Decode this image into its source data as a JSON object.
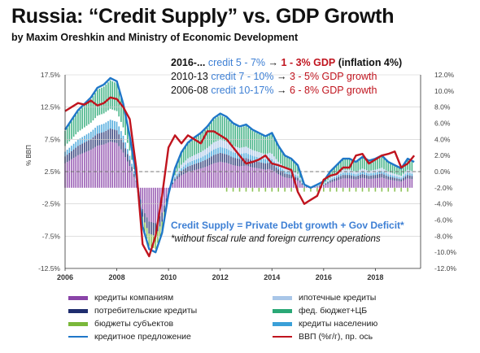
{
  "title": "Russia: “Credit Supply” vs. GDP Growth",
  "subtitle": "by Maxim Oreshkin and Ministry of Economic Development",
  "notes": [
    {
      "period": "2016-...",
      "credit": "credit 5 - 7%",
      "arrow": "→",
      "gdp": "1 - 3% GDP",
      "extra": "(inflation 4%)"
    },
    {
      "period": "2010-13",
      "credit": "credit 7 - 10%",
      "arrow": "→",
      "gdp": "3 - 5% GDP growth"
    },
    {
      "period": "2006-08",
      "credit": "credit 10-17%",
      "arrow": "→",
      "gdp": "6 - 8% GDP growth"
    }
  ],
  "annotation": {
    "line1": "Credit Supply = Private Debt growth + Gov Deficit*",
    "line2": "*without fiscal rule and foreign currency operations"
  },
  "legend": [
    {
      "label": "кредиты компаниям",
      "color": "#8a44a8",
      "kind": "bar"
    },
    {
      "label": "ипотечные кредиты",
      "color": "#a9c6e8",
      "kind": "bar"
    },
    {
      "label": "потребительские кредиты",
      "color": "#1f2d6e",
      "kind": "bar"
    },
    {
      "label": "фед. бюджет+ЦБ",
      "color": "#2aa876",
      "kind": "bar"
    },
    {
      "label": "бюджеты субъектов",
      "color": "#7ab83a",
      "kind": "bar"
    },
    {
      "label": "кредиты населению",
      "color": "#3aa0d8",
      "kind": "bar"
    },
    {
      "label": "кредитное предложение",
      "color": "#1f77c8",
      "kind": "line"
    },
    {
      "label": "ВВП (%г/г), пр. ось",
      "color": "#c0141e",
      "kind": "line"
    }
  ],
  "chart_data": {
    "type": "bar",
    "x_ticks": [
      "2006",
      "2008",
      "2010",
      "2012",
      "2014",
      "2016",
      "2018"
    ],
    "ylabel": "% ВВП",
    "ylim": [
      -12.5,
      17.5
    ],
    "y_ticks": [
      "17.5%",
      "12.5%",
      "7.5%",
      "2.5%",
      "-2.5%",
      "-7.5%",
      "-12.5%"
    ],
    "y2lim": [
      -12.0,
      12.0
    ],
    "y2_ticks": [
      "12.0%",
      "10.0%",
      "8.0%",
      "6.0%",
      "4.0%",
      "2.0%",
      "0.0%",
      "-2.0%",
      "-4.0%",
      "-6.0%",
      "-8.0%",
      "-10.0%",
      "-12.0%"
    ],
    "series": [
      {
        "name": "кредитное предложение",
        "axis": "left",
        "color": "#1f77c8",
        "x": [
          2006.0,
          2006.25,
          2006.5,
          2006.75,
          2007.0,
          2007.25,
          2007.5,
          2007.75,
          2008.0,
          2008.25,
          2008.5,
          2008.75,
          2009.0,
          2009.25,
          2009.5,
          2009.75,
          2010.0,
          2010.25,
          2010.5,
          2010.75,
          2011.0,
          2011.25,
          2011.5,
          2011.75,
          2012.0,
          2012.25,
          2012.5,
          2012.75,
          2013.0,
          2013.25,
          2013.5,
          2013.75,
          2014.0,
          2014.25,
          2014.5,
          2014.75,
          2015.0,
          2015.25,
          2015.5,
          2015.75,
          2016.0,
          2016.25,
          2016.5,
          2016.75,
          2017.0,
          2017.25,
          2017.5,
          2017.75,
          2018.0,
          2018.25,
          2018.5,
          2018.75,
          2019.0,
          2019.25,
          2019.5
        ],
        "values": [
          9.0,
          10.5,
          12.0,
          13.0,
          14.0,
          15.5,
          16.0,
          17.0,
          16.5,
          13.0,
          8.0,
          2.0,
          -6.0,
          -9.5,
          -10.0,
          -7.0,
          -1.0,
          3.0,
          5.5,
          7.0,
          7.8,
          8.5,
          9.5,
          10.8,
          11.5,
          11.0,
          10.0,
          9.5,
          9.8,
          9.0,
          8.5,
          8.0,
          8.5,
          6.5,
          5.0,
          4.5,
          3.5,
          0.5,
          0.0,
          0.5,
          1.0,
          2.5,
          3.5,
          4.5,
          4.5,
          4.0,
          4.8,
          4.2,
          4.5,
          5.0,
          4.0,
          3.5,
          3.0,
          4.5,
          4.0
        ]
      },
      {
        "name": "ВВП (%г/г), пр. ось",
        "axis": "right",
        "color": "#c0141e",
        "x": [
          2006.0,
          2006.25,
          2006.5,
          2006.75,
          2007.0,
          2007.25,
          2007.5,
          2007.75,
          2008.0,
          2008.25,
          2008.5,
          2008.75,
          2009.0,
          2009.25,
          2009.5,
          2009.75,
          2010.0,
          2010.25,
          2010.5,
          2010.75,
          2011.0,
          2011.25,
          2011.5,
          2011.75,
          2012.0,
          2012.25,
          2012.5,
          2012.75,
          2013.0,
          2013.25,
          2013.5,
          2013.75,
          2014.0,
          2014.25,
          2014.5,
          2014.75,
          2015.0,
          2015.25,
          2015.5,
          2015.75,
          2016.0,
          2016.25,
          2016.5,
          2016.75,
          2017.0,
          2017.25,
          2017.5,
          2017.75,
          2018.0,
          2018.25,
          2018.5,
          2018.75,
          2019.0,
          2019.25,
          2019.5
        ],
        "values": [
          7.5,
          8.0,
          8.5,
          8.3,
          8.8,
          8.2,
          8.5,
          9.2,
          9.0,
          8.0,
          6.5,
          0.5,
          -9.0,
          -10.5,
          -8.0,
          -3.0,
          3.0,
          4.5,
          3.5,
          4.5,
          4.0,
          3.5,
          5.0,
          5.0,
          4.5,
          4.0,
          3.0,
          2.0,
          1.0,
          1.2,
          1.5,
          2.0,
          1.0,
          0.8,
          0.5,
          0.2,
          -2.5,
          -4.0,
          -3.5,
          -3.0,
          -1.0,
          -0.5,
          -0.3,
          0.5,
          0.5,
          2.0,
          2.2,
          1.0,
          1.5,
          2.0,
          2.2,
          2.5,
          0.5,
          1.0,
          2.0
        ]
      }
    ]
  }
}
